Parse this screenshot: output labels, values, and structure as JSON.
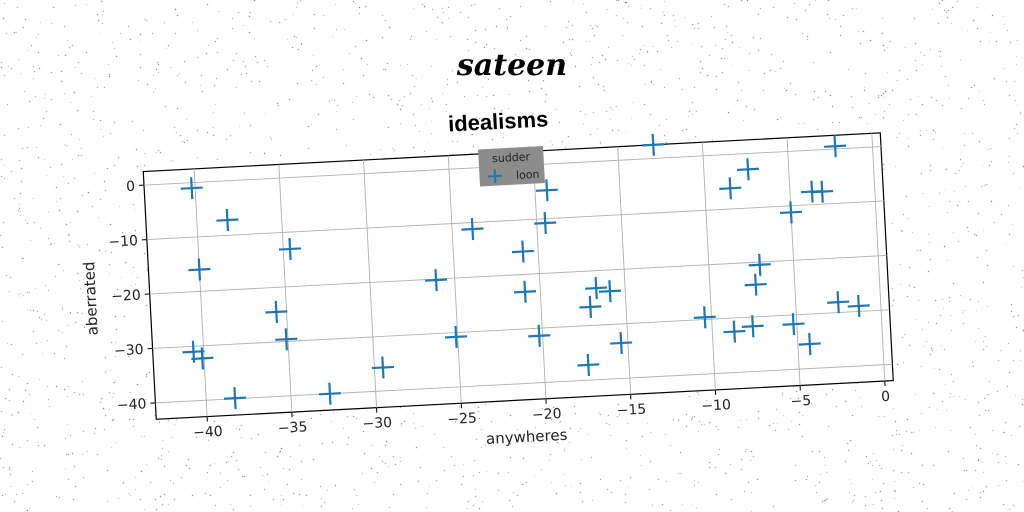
{
  "suptitle": "sateen",
  "chart_data": {
    "type": "scatter",
    "title": "idealisms",
    "xlabel": "anywheres",
    "ylabel": "aberrated",
    "xlim": [
      -43,
      0.5
    ],
    "ylim": [
      -43,
      2.5
    ],
    "xticks": [
      -40,
      -35,
      -30,
      -25,
      -20,
      -15,
      -10,
      -5,
      0
    ],
    "yticks": [
      0,
      -10,
      -20,
      -30,
      -40
    ],
    "grid": true,
    "legend": {
      "title": "sudder",
      "placement": "top-center"
    },
    "marker": "+",
    "color": "#1f77b4",
    "series": [
      {
        "name": "loon",
        "points": [
          [
            -40.2,
            -1
          ],
          [
            -38.2,
            -7.2
          ],
          [
            -40,
            -16
          ],
          [
            -34.6,
            -13.1
          ],
          [
            -35.6,
            -24.5
          ],
          [
            -35.1,
            -29.6
          ],
          [
            -40.6,
            -31
          ],
          [
            -40.1,
            -32.3
          ],
          [
            -38.3,
            -39.9
          ],
          [
            -32.7,
            -40
          ],
          [
            -29.5,
            -35.7
          ],
          [
            -26.1,
            -20.2
          ],
          [
            -25.1,
            -30.8
          ],
          [
            -23.8,
            -11.2
          ],
          [
            -20.9,
            -15.8
          ],
          [
            -20.9,
            -23.2
          ],
          [
            -20.2,
            -31.4
          ],
          [
            -19.5,
            -10.8
          ],
          [
            -19.3,
            -4.8
          ],
          [
            -17.4,
            -37.2
          ],
          [
            -17.1,
            -26.6
          ],
          [
            -16.7,
            -23.2
          ],
          [
            -15.9,
            -23.9
          ],
          [
            -15.4,
            -33.5
          ],
          [
            -12.9,
            2.5
          ],
          [
            -10.4,
            -29.6
          ],
          [
            -8.7,
            -32.5
          ],
          [
            -8.5,
            -6.2
          ],
          [
            -7.6,
            -31.7
          ],
          [
            -7.4,
            -2.9
          ],
          [
            -7.3,
            -24.1
          ],
          [
            -7,
            -20.5
          ],
          [
            -5.2,
            -31.7
          ],
          [
            -5,
            -11.2
          ],
          [
            -4.3,
            -35.5
          ],
          [
            -3.7,
            -7.6
          ],
          [
            -3.1,
            -7.7
          ],
          [
            -2.5,
            -28.1
          ],
          [
            -2.2,
            0.5
          ],
          [
            -1.3,
            -29
          ]
        ]
      }
    ]
  }
}
